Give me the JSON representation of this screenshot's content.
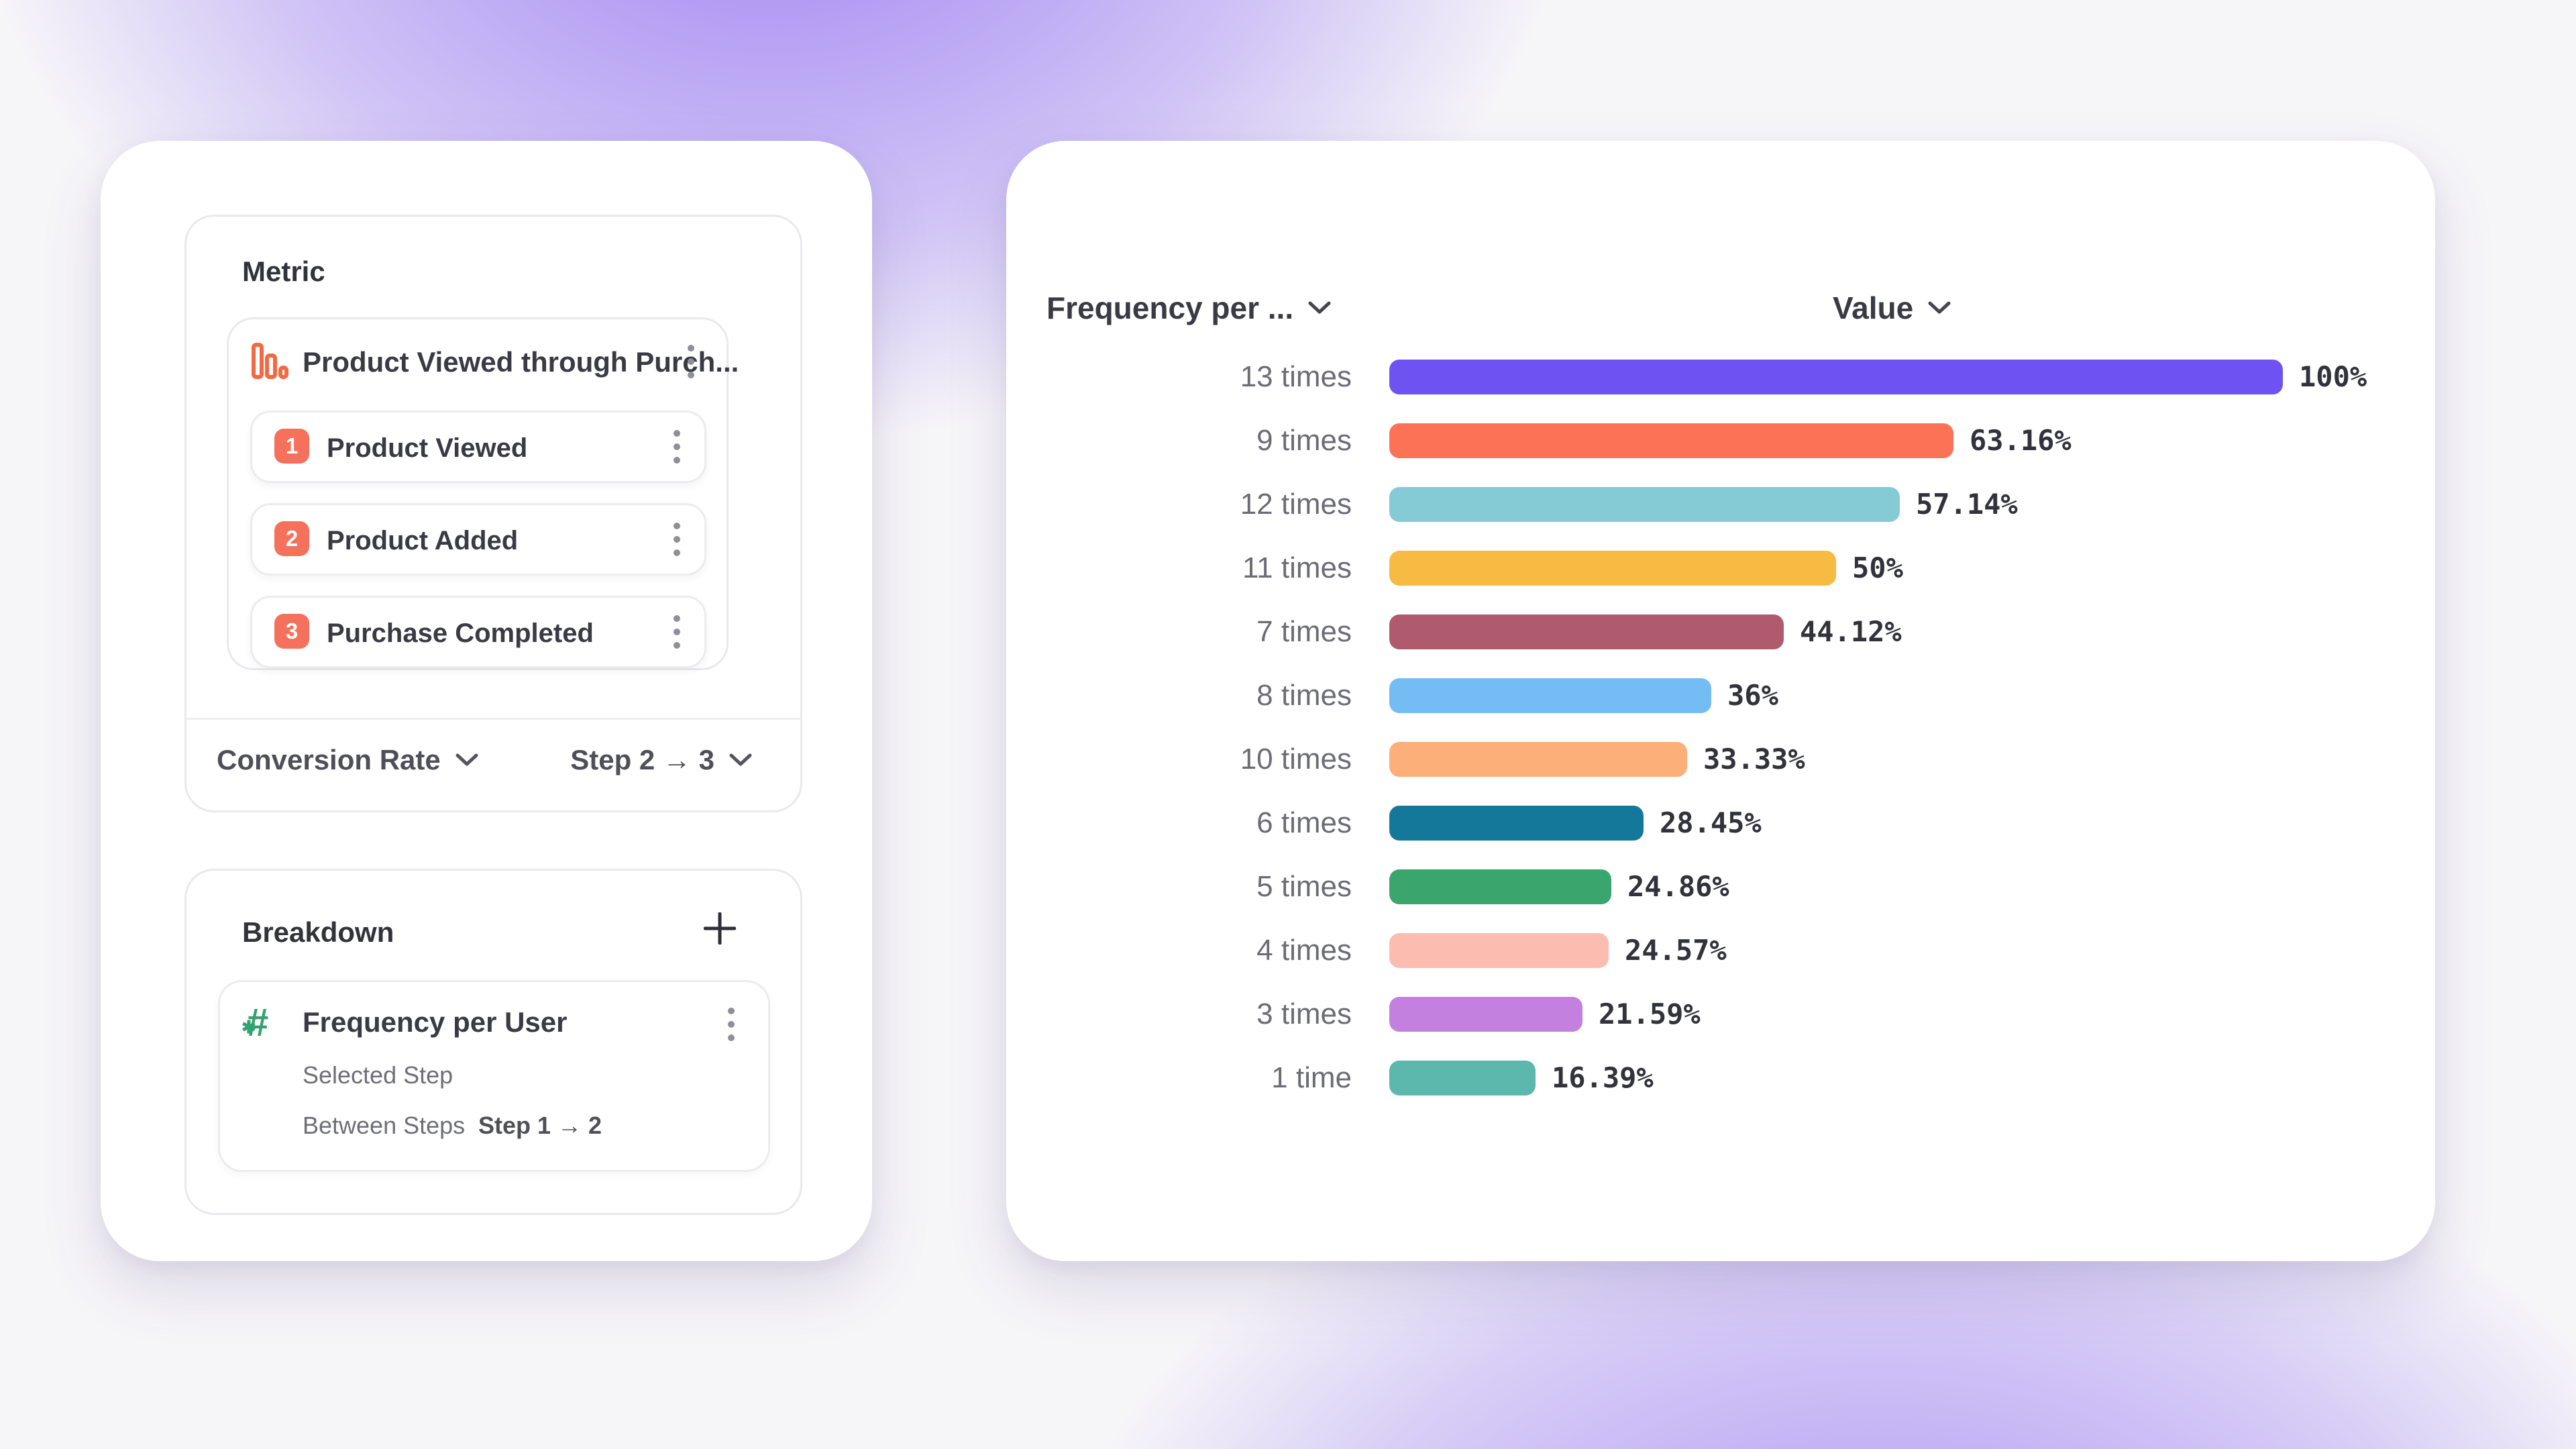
{
  "metric": {
    "title": "Metric",
    "event": {
      "title": "Product Viewed through Purch...",
      "icon": "funnel-bars-icon"
    },
    "steps": [
      {
        "num": "1",
        "label": "Product Viewed"
      },
      {
        "num": "2",
        "label": "Product Added"
      },
      {
        "num": "3",
        "label": "Purchase Completed"
      }
    ],
    "badge_color": "#F5715B",
    "footer": {
      "measure": "Conversion Rate",
      "step_range": "Step 2 → 3"
    }
  },
  "breakdown": {
    "title": "Breakdown",
    "add_icon": "plus-icon",
    "item": {
      "icon": "numeric-hash-icon",
      "title": "Frequency per User",
      "selected_step_label": "Selected Step",
      "between_steps_label": "Between Steps",
      "between_steps_value": "Step 1 → 2"
    }
  },
  "chart": {
    "col1_header": "Frequency per ...",
    "col2_header": "Value",
    "chart_data": {
      "type": "bar",
      "orientation": "horizontal",
      "categories": [
        "13 times",
        "9 times",
        "12 times",
        "11 times",
        "7 times",
        "8 times",
        "10 times",
        "6 times",
        "5 times",
        "4 times",
        "3 times",
        "1 time"
      ],
      "values": [
        100,
        63.16,
        57.14,
        50,
        44.12,
        36,
        33.33,
        28.45,
        24.86,
        24.57,
        21.59,
        16.39
      ],
      "value_labels": [
        "100%",
        "63.16%",
        "57.14%",
        "50%",
        "44.12%",
        "36%",
        "33.33%",
        "28.45%",
        "24.86%",
        "24.57%",
        "21.59%",
        "16.39%"
      ],
      "colors": [
        "#6F52F2",
        "#FB7257",
        "#85CBD6",
        "#F7BB44",
        "#B05A6E",
        "#74BDF4",
        "#FCAF79",
        "#14789B",
        "#3AA56D",
        "#FCBDB0",
        "#C480DF",
        "#5CB8AD"
      ],
      "xlim": [
        0,
        100
      ],
      "grid": false,
      "legend": false
    }
  },
  "colors": {
    "funnel_icon": "#F26A43",
    "hash_icon": "#34A173",
    "accent_purple": "#6F52F2"
  }
}
